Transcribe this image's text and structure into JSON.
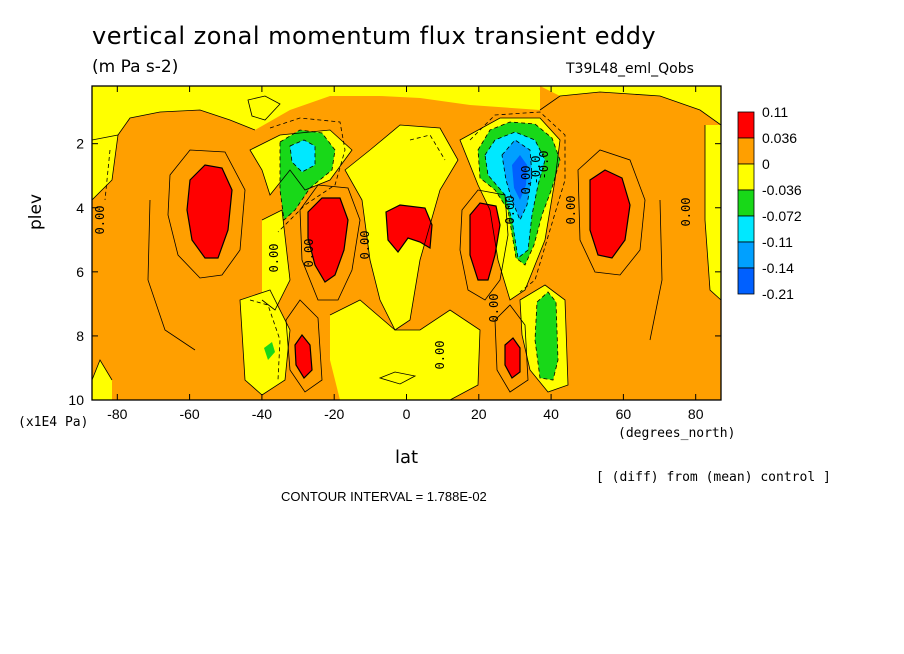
{
  "chart_data": {
    "type": "heatmap",
    "title": "vertical zonal momentum flux transient eddy",
    "units": "(m Pa s-2)",
    "run_label": "T39L48_eml_Qobs",
    "xlabel": "lat",
    "x_units": "(degrees_north)",
    "ylabel": "plev",
    "y_units": "(x1E4 Pa)",
    "x_ticks": [
      -80,
      -60,
      -40,
      -20,
      0,
      20,
      40,
      60,
      80
    ],
    "y_ticks": [
      2,
      4,
      6,
      8,
      10
    ],
    "xlim": [
      -87,
      87
    ],
    "ylim": [
      10,
      0.2
    ],
    "contour_interval_label": "CONTOUR INTERVAL = 1.788E-02",
    "note": "[ (diff) from (mean) control ]",
    "contour_labels": [
      "0.00",
      "0.00",
      "0.00",
      "0.00",
      "0.00",
      "0.00",
      "0.00",
      "0.00",
      "0.00",
      "0.00",
      "-0.0",
      "-0.0"
    ],
    "colorbar": {
      "levels": [
        "0.11",
        "0.036",
        "0",
        "-0.036",
        "-0.072",
        "-0.11",
        "-0.14",
        "-0.21"
      ],
      "colors": [
        "#ff0000",
        "#ff9f00",
        "#ffff00",
        "#18d818",
        "#00e8ff",
        "#00a0ff",
        "#0060ff"
      ]
    },
    "features": [
      {
        "kind": "positive_max",
        "lat": -55,
        "plev": 4.0,
        "level": "0.11"
      },
      {
        "kind": "positive_max",
        "lat": -21,
        "plev": 4.5,
        "level": "0.11"
      },
      {
        "kind": "positive_max",
        "lat": 2,
        "plev": 4.2,
        "level": "0.11"
      },
      {
        "kind": "positive_max",
        "lat": 22,
        "plev": 4.5,
        "level": "0.11"
      },
      {
        "kind": "positive_max",
        "lat": 58,
        "plev": 4.0,
        "level": "0.11"
      },
      {
        "kind": "positive_max",
        "lat": -28,
        "plev": 8.5,
        "level": "0.11"
      },
      {
        "kind": "positive_max",
        "lat": 28,
        "plev": 8.5,
        "level": "0.11"
      },
      {
        "kind": "negative_min",
        "lat": -30,
        "plev": 2.4,
        "level": "-0.11"
      },
      {
        "kind": "negative_min",
        "lat": 32,
        "plev": 3.2,
        "level": "-0.21"
      },
      {
        "kind": "negative_min",
        "lat": 39,
        "plev": 8.0,
        "level": "-0.072"
      },
      {
        "kind": "negative_min",
        "lat": -38,
        "plev": 8.5,
        "level": "-0.072"
      }
    ]
  }
}
